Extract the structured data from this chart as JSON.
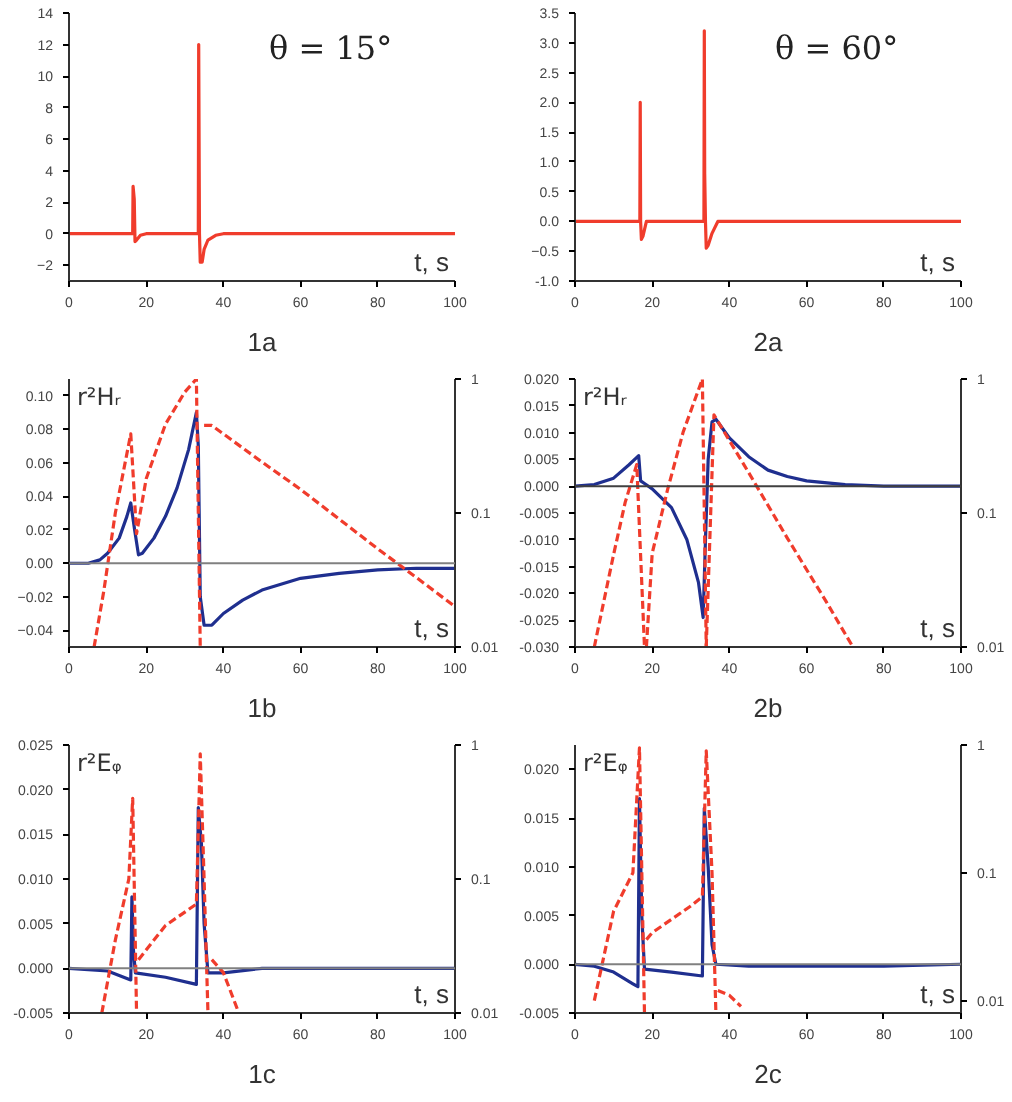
{
  "chart_data": [
    {
      "type": "line",
      "title": "1a",
      "xlabel": "t, s",
      "annotations": [
        "θ = 15°"
      ],
      "xlim": [
        0,
        100
      ],
      "xticks": [
        0,
        20,
        40,
        60,
        80,
        100
      ],
      "ylim": [
        -3,
        14
      ],
      "yticks": [
        -2,
        0,
        2,
        4,
        6,
        8,
        10,
        12,
        14
      ],
      "grid": false,
      "series": [
        {
          "color": "#f03c2c",
          "x": [
            0,
            16.5,
            16.6,
            16.9,
            17.1,
            17.5,
            18.5,
            20,
            33.5,
            33.6,
            33.8,
            34,
            34.5,
            35,
            36,
            38,
            40,
            100
          ],
          "values": [
            0,
            0,
            3,
            2.2,
            -0.5,
            -0.4,
            -0.1,
            0,
            0,
            12,
            0,
            -1.8,
            -1.8,
            -1.0,
            -0.4,
            -0.1,
            0,
            0
          ]
        }
      ]
    },
    {
      "type": "line",
      "title": "2a",
      "xlabel": "t, s",
      "annotations": [
        "θ = 60°"
      ],
      "xlim": [
        0,
        100
      ],
      "xticks": [
        0,
        20,
        40,
        60,
        80,
        100
      ],
      "ylim": [
        -1,
        3.5
      ],
      "yticks": [
        {
          "value": -1,
          "label": "-1.0"
        },
        -0.5,
        {
          "value": 0,
          "label": "0.0"
        },
        0.5,
        {
          "value": 1,
          "label": "1.0"
        },
        1.5,
        {
          "value": 2,
          "label": "2.0"
        },
        2.5,
        {
          "value": 3,
          "label": "3.0"
        },
        3.5
      ],
      "grid": false,
      "series": [
        {
          "color": "#f03c2c",
          "x": [
            0,
            16.8,
            16.9,
            17.0,
            17.2,
            17.6,
            18.5,
            33.4,
            33.5,
            33.6,
            33.8,
            34,
            34.5,
            35.5,
            37,
            100
          ],
          "values": [
            0,
            0,
            2.0,
            0,
            -0.3,
            -0.25,
            0,
            0,
            3.2,
            0.8,
            0,
            -0.45,
            -0.4,
            -0.2,
            0,
            0
          ]
        }
      ]
    },
    {
      "type": "line",
      "title": "1b",
      "xlabel": "t, s",
      "ylabel": "r²Hᵣ",
      "xlim": [
        0,
        100
      ],
      "xticks": [
        0,
        20,
        40,
        60,
        80,
        100
      ],
      "ylim": [
        -0.05,
        0.11
      ],
      "yticks": [
        -0.04,
        -0.02,
        {
          "value": 0,
          "label": "0.00"
        },
        0.02,
        0.04,
        0.06,
        0.08,
        {
          "value": 0.1,
          "label": "0.10"
        }
      ],
      "y2lim": [
        0.01,
        1
      ],
      "y2ticks": [
        0.01,
        0.1,
        1
      ],
      "log": "y2",
      "grid": false,
      "ref_lines": [
        {
          "axis": "y",
          "value": 0,
          "color": "#808080"
        }
      ],
      "series": [
        {
          "color": "#1f2f8f",
          "x": [
            0,
            5,
            8,
            10,
            13,
            15,
            16,
            17,
            18,
            19,
            22,
            25,
            28,
            31,
            33,
            33.5,
            34,
            35,
            37,
            40,
            45,
            50,
            60,
            70,
            80,
            90,
            100
          ],
          "values": [
            0,
            0,
            0.002,
            0.006,
            0.015,
            0.028,
            0.036,
            0.02,
            0.005,
            0.006,
            0.015,
            0.028,
            0.045,
            0.068,
            0.09,
            0.07,
            -0.02,
            -0.037,
            -0.037,
            -0.03,
            -0.022,
            -0.016,
            -0.009,
            -0.006,
            -0.004,
            -0.003,
            -0.003
          ]
        },
        {
          "color": "#f03c2c",
          "axis": "y2",
          "line_style": "dashed",
          "x": [
            6.5,
            9,
            12,
            16,
            17.5,
            20,
            25,
            30,
            33,
            34
          ],
          "values": [
            0.01,
            0.026,
            0.1,
            0.39,
            0.07,
            0.18,
            0.46,
            0.8,
            1.0,
            0.01
          ]
        },
        {
          "color": "#f03c2c",
          "axis": "y2",
          "line_style": "dashed",
          "x": [
            35,
            37,
            50,
            60,
            70,
            80,
            90,
            100
          ],
          "values": [
            0.45,
            0.45,
            0.24,
            0.15,
            0.09,
            0.054,
            0.033,
            0.02
          ]
        }
      ]
    },
    {
      "type": "line",
      "title": "2b",
      "xlabel": "t, s",
      "ylabel": "r²Hᵣ",
      "xlim": [
        0,
        100
      ],
      "xticks": [
        0,
        20,
        40,
        60,
        80,
        100
      ],
      "ylim": [
        -0.03,
        0.02
      ],
      "yticks": [
        {
          "value": -0.03,
          "label": "-0.030"
        },
        {
          "value": -0.025,
          "label": "-0.025"
        },
        {
          "value": -0.02,
          "label": "-0.020"
        },
        {
          "value": -0.015,
          "label": "-0.015"
        },
        {
          "value": -0.01,
          "label": "-0.010"
        },
        {
          "value": -0.005,
          "label": "-0.005"
        },
        {
          "value": 0,
          "label": "0.000"
        },
        {
          "value": 0.005,
          "label": "0.005"
        },
        {
          "value": 0.01,
          "label": "0.010"
        },
        {
          "value": 0.015,
          "label": "0.015"
        },
        {
          "value": 0.02,
          "label": "0.020"
        }
      ],
      "y2lim": [
        0.01,
        1
      ],
      "y2ticks": [
        0.01,
        0.1,
        1
      ],
      "log": "y2",
      "grid": false,
      "ref_lines": [
        {
          "axis": "y",
          "value": 0,
          "color": "#404040"
        }
      ],
      "series": [
        {
          "color": "#1f2f8f",
          "x": [
            0,
            5,
            10,
            14,
            16.5,
            17,
            18,
            20,
            25,
            29,
            32,
            33.2,
            33.8,
            34.5,
            35.5,
            36.5,
            40,
            45,
            50,
            55,
            60,
            70,
            80,
            100
          ],
          "values": [
            0,
            0.0003,
            0.0015,
            0.004,
            0.0057,
            0.001,
            0.0005,
            -0.0005,
            -0.004,
            -0.01,
            -0.018,
            -0.0245,
            -0.01,
            0.005,
            0.012,
            0.0125,
            0.009,
            0.0055,
            0.003,
            0.0018,
            0.001,
            0.0003,
            0,
            0
          ]
        },
        {
          "color": "#f03c2c",
          "axis": "y2",
          "line_style": "dashed",
          "x": [
            5,
            10,
            13,
            16,
            18
          ],
          "values": [
            0.01,
            0.049,
            0.12,
            0.23,
            0.01
          ]
        },
        {
          "color": "#f03c2c",
          "axis": "y2",
          "line_style": "dashed",
          "x": [
            18.5,
            20,
            24,
            28,
            33,
            34
          ],
          "values": [
            0.01,
            0.05,
            0.15,
            0.4,
            1.0,
            0.01
          ]
        },
        {
          "color": "#f03c2c",
          "axis": "y2",
          "line_style": "dashed",
          "x": [
            34,
            36,
            45,
            55,
            65,
            72
          ],
          "values": [
            0.01,
            0.54,
            0.2,
            0.065,
            0.022,
            0.01
          ]
        }
      ]
    },
    {
      "type": "line",
      "title": "1c",
      "xlabel": "t, s",
      "ylabel": "r²Eᵩ",
      "xlim": [
        0,
        100
      ],
      "xticks": [
        0,
        20,
        40,
        60,
        80,
        100
      ],
      "ylim": [
        -0.005,
        0.025
      ],
      "yticks": [
        {
          "value": -0.005,
          "label": "-0.005"
        },
        {
          "value": 0,
          "label": "0.000"
        },
        {
          "value": 0.005,
          "label": "0.005"
        },
        {
          "value": 0.01,
          "label": "0.010"
        },
        {
          "value": 0.015,
          "label": "0.015"
        },
        {
          "value": 0.02,
          "label": "0.020"
        },
        {
          "value": 0.025,
          "label": "0.025"
        }
      ],
      "y2lim": [
        0.01,
        1
      ],
      "y2ticks": [
        0.01,
        0.1,
        1
      ],
      "log": "y2",
      "grid": false,
      "ref_lines": [
        {
          "axis": "y",
          "value": 0,
          "color": "#808080"
        }
      ],
      "series": [
        {
          "color": "#1f2f8f",
          "x": [
            0,
            10,
            16,
            16.3,
            16.7,
            17.2,
            25,
            33,
            33.5,
            34.3,
            35,
            36,
            40,
            50,
            100
          ],
          "values": [
            0,
            -0.0003,
            -0.0013,
            0.008,
            0.002,
            -0.0005,
            -0.001,
            -0.0018,
            0.018,
            0.014,
            0.005,
            -0.0005,
            -0.0005,
            0,
            0
          ]
        },
        {
          "color": "#f03c2c",
          "axis": "y2",
          "line_style": "dashed",
          "x": [
            8.5,
            12,
            15.5,
            16.5,
            17.5
          ],
          "values": [
            0.01,
            0.035,
            0.1,
            0.4,
            0.01
          ]
        },
        {
          "color": "#f03c2c",
          "axis": "y2",
          "line_style": "dashed",
          "x": [
            18,
            25,
            33,
            34,
            35,
            36
          ],
          "values": [
            0.025,
            0.045,
            0.065,
            0.86,
            0.1,
            0.01
          ]
        },
        {
          "color": "#f03c2c",
          "axis": "y2",
          "line_style": "dashed",
          "x": [
            37,
            40,
            44
          ],
          "values": [
            0.025,
            0.02,
            0.01
          ]
        }
      ]
    },
    {
      "type": "line",
      "title": "2c",
      "xlabel": "t, s",
      "ylabel": "r²Eᵩ",
      "xlim": [
        0,
        100
      ],
      "xticks": [
        0,
        20,
        40,
        60,
        80,
        100
      ],
      "ylim": [
        -0.005,
        0.0225
      ],
      "yticks": [
        {
          "value": -0.005,
          "label": "-0.005"
        },
        {
          "value": 0,
          "label": "0.000"
        },
        {
          "value": 0.005,
          "label": "0.005"
        },
        {
          "value": 0.01,
          "label": "0.010"
        },
        {
          "value": 0.015,
          "label": "0.015"
        },
        {
          "value": 0.02,
          "label": "0.020"
        }
      ],
      "y2lim": [
        0.008,
        1
      ],
      "y2ticks": [
        0.01,
        0.1,
        1
      ],
      "log": "y2",
      "grid": false,
      "ref_lines": [
        {
          "axis": "y",
          "value": 0,
          "color": "#808080"
        }
      ],
      "series": [
        {
          "color": "#1f2f8f",
          "x": [
            0,
            5,
            10,
            15,
            16.3,
            16.7,
            17.3,
            18,
            25,
            33,
            33.5,
            34.5,
            35.5,
            36.5,
            45,
            80,
            100
          ],
          "values": [
            0,
            -0.0002,
            -0.0008,
            -0.002,
            -0.0023,
            0.017,
            0.005,
            -0.0005,
            -0.0008,
            -0.0012,
            0.016,
            0.01,
            0.002,
            0,
            -0.0002,
            -0.0002,
            0
          ]
        },
        {
          "color": "#f03c2c",
          "axis": "y2",
          "line_style": "dashed",
          "x": [
            5,
            10,
            15,
            16.7,
            18
          ],
          "values": [
            0.01,
            0.05,
            0.1,
            0.95,
            0.008
          ]
        },
        {
          "color": "#f03c2c",
          "axis": "y2",
          "line_style": "dashed",
          "x": [
            18.5,
            20,
            30,
            33,
            34,
            35.5,
            36.5
          ],
          "values": [
            0.03,
            0.034,
            0.055,
            0.065,
            0.9,
            0.1,
            0.008
          ]
        },
        {
          "color": "#f03c2c",
          "axis": "y2",
          "line_style": "dashed",
          "x": [
            37,
            40,
            43
          ],
          "values": [
            0.012,
            0.011,
            0.009
          ]
        }
      ]
    }
  ]
}
